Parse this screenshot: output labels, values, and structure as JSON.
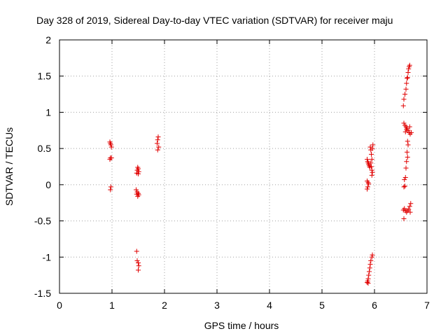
{
  "chart_data": {
    "type": "scatter",
    "title": "Day 328 of 2019, Sidereal Day-to-day VTEC variation (SDTVAR) for receiver maju",
    "xlabel": "GPS time / hours",
    "ylabel": "SDTVAR / TECUs",
    "xlim": [
      0,
      7
    ],
    "ylim": [
      -1.5,
      2
    ],
    "xticks": [
      0,
      1,
      2,
      3,
      4,
      5,
      6,
      7
    ],
    "xtick_labels": [
      "0",
      "1",
      "2",
      "3",
      "4",
      "5",
      "6",
      "7"
    ],
    "yticks": [
      -1.5,
      -1,
      -0.5,
      0,
      0.5,
      1,
      1.5,
      2
    ],
    "ytick_labels": [
      "-1.5",
      "-1",
      "-0.5",
      "0",
      "0.5",
      "1",
      "1.5",
      "2"
    ],
    "grid": true,
    "marker": "+",
    "color": "#e00000",
    "series": [
      {
        "name": "SDTVAR",
        "points": [
          [
            0.96,
            0.59
          ],
          [
            0.97,
            0.57
          ],
          [
            0.98,
            0.55
          ],
          [
            0.99,
            0.52
          ],
          [
            0.97,
            0.37
          ],
          [
            0.96,
            0.35
          ],
          [
            0.99,
            0.37
          ],
          [
            0.98,
            -0.03
          ],
          [
            0.97,
            -0.07
          ],
          [
            1.49,
            0.24
          ],
          [
            1.5,
            0.22
          ],
          [
            1.48,
            0.2
          ],
          [
            1.51,
            0.18
          ],
          [
            1.47,
            0.16
          ],
          [
            1.5,
            0.15
          ],
          [
            1.46,
            -0.07
          ],
          [
            1.48,
            -0.1
          ],
          [
            1.5,
            -0.12
          ],
          [
            1.51,
            -0.14
          ],
          [
            1.49,
            -0.16
          ],
          [
            1.47,
            -0.13
          ],
          [
            1.47,
            -0.92
          ],
          [
            1.48,
            -1.05
          ],
          [
            1.5,
            -1.08
          ],
          [
            1.51,
            -1.12
          ],
          [
            1.5,
            -1.18
          ],
          [
            1.88,
            0.66
          ],
          [
            1.87,
            0.62
          ],
          [
            1.86,
            0.57
          ],
          [
            1.89,
            0.52
          ],
          [
            1.87,
            0.48
          ],
          [
            5.86,
            0.35
          ],
          [
            5.87,
            0.32
          ],
          [
            5.88,
            0.3
          ],
          [
            5.89,
            0.28
          ],
          [
            5.9,
            0.26
          ],
          [
            5.91,
            0.24
          ],
          [
            5.86,
            0.05
          ],
          [
            5.88,
            0.03
          ],
          [
            5.89,
            0.01
          ],
          [
            5.87,
            -0.03
          ],
          [
            5.86,
            -0.06
          ],
          [
            5.92,
            0.52
          ],
          [
            5.93,
            0.48
          ],
          [
            5.94,
            0.42
          ],
          [
            5.95,
            0.35
          ],
          [
            5.93,
            0.3
          ],
          [
            5.94,
            0.25
          ],
          [
            5.95,
            0.2
          ],
          [
            5.96,
            0.17
          ],
          [
            5.95,
            0.13
          ],
          [
            5.97,
            0.55
          ],
          [
            5.96,
            0.5
          ],
          [
            5.86,
            -1.35
          ],
          [
            5.87,
            -1.33
          ],
          [
            5.88,
            -1.3
          ],
          [
            5.89,
            -1.25
          ],
          [
            5.9,
            -1.2
          ],
          [
            5.91,
            -1.15
          ],
          [
            5.92,
            -1.1
          ],
          [
            5.93,
            -1.05
          ],
          [
            5.95,
            -1.0
          ],
          [
            5.96,
            -0.97
          ],
          [
            5.88,
            -1.36
          ],
          [
            6.55,
            1.09
          ],
          [
            6.56,
            1.18
          ],
          [
            6.58,
            1.25
          ],
          [
            6.6,
            1.32
          ],
          [
            6.61,
            1.4
          ],
          [
            6.62,
            1.47
          ],
          [
            6.64,
            1.55
          ],
          [
            6.65,
            1.6
          ],
          [
            6.66,
            1.63
          ],
          [
            6.67,
            1.65
          ],
          [
            6.63,
            1.48
          ],
          [
            6.56,
            0.85
          ],
          [
            6.58,
            0.82
          ],
          [
            6.6,
            0.8
          ],
          [
            6.62,
            0.78
          ],
          [
            6.64,
            0.75
          ],
          [
            6.66,
            0.72
          ],
          [
            6.68,
            0.7
          ],
          [
            6.7,
            0.72
          ],
          [
            6.59,
            0.73
          ],
          [
            6.61,
            0.76
          ],
          [
            6.67,
            0.8
          ],
          [
            6.63,
            0.6
          ],
          [
            6.64,
            0.55
          ],
          [
            6.62,
            0.45
          ],
          [
            6.63,
            0.38
          ],
          [
            6.61,
            0.32
          ],
          [
            6.6,
            0.23
          ],
          [
            6.59,
            0.1
          ],
          [
            6.57,
            0.07
          ],
          [
            6.58,
            -0.02
          ],
          [
            6.56,
            -0.03
          ],
          [
            6.55,
            -0.35
          ],
          [
            6.57,
            -0.33
          ],
          [
            6.59,
            -0.36
          ],
          [
            6.61,
            -0.38
          ],
          [
            6.63,
            -0.36
          ],
          [
            6.65,
            -0.34
          ],
          [
            6.67,
            -0.3
          ],
          [
            6.69,
            -0.26
          ],
          [
            6.68,
            -0.38
          ],
          [
            6.56,
            -0.47
          ]
        ]
      }
    ]
  }
}
